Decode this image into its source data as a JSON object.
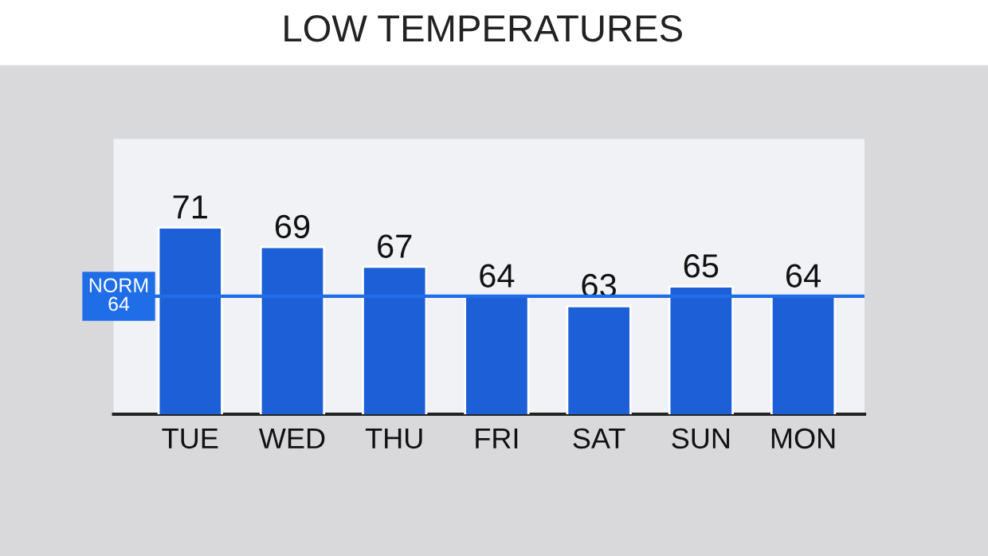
{
  "chart_data": {
    "type": "bar",
    "title": "LOW TEMPERATURES",
    "categories": [
      "TUE",
      "WED",
      "THU",
      "FRI",
      "SAT",
      "SUN",
      "MON"
    ],
    "values": [
      71,
      69,
      67,
      64,
      63,
      65,
      64
    ],
    "color": "#1d5fd6",
    "ylim": [
      52,
      80
    ],
    "tick_labels": "x",
    "data_labels": true,
    "ref_lines": [
      {
        "axis": "y",
        "value": 64,
        "label": "NORM\n64",
        "color": "#1f6ee8"
      }
    ]
  }
}
